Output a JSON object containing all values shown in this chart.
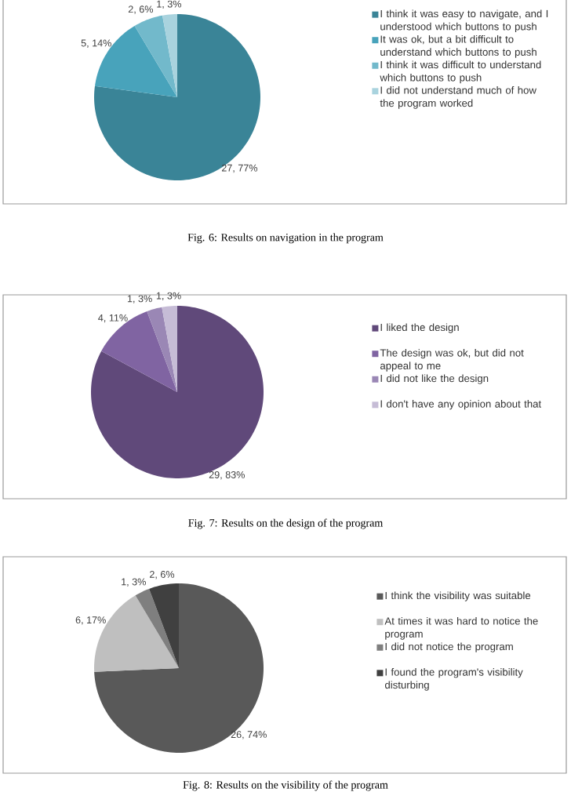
{
  "chart_data": [
    {
      "type": "pie",
      "categories": [
        "I think it was easy to navigate, and I understood which buttons to push",
        "It was ok, but a bit difficult to understand which buttons to push",
        "I think it was difficult to understand which buttons to push",
        "I did not understand much of how the program worked"
      ],
      "values": [
        27,
        5,
        2,
        1
      ],
      "colors": [
        "#3a8497",
        "#48a3bb",
        "#72b9cb",
        "#a9d3de"
      ],
      "value_labels": [
        "27, 77%",
        "5, 14%",
        "2, 6%",
        "1, 3%"
      ],
      "legend": "right",
      "annotations": [
        "Fig. 6: Results on navigation in the program"
      ]
    },
    {
      "type": "pie",
      "categories": [
        "I liked the design",
        "The design was ok, but did not appeal to me",
        "I did not like the design",
        "I don't have any opinion about that"
      ],
      "values": [
        29,
        4,
        1,
        1
      ],
      "colors": [
        "#60497a",
        "#8064a2",
        "#9a87b5",
        "#c6bcd6"
      ],
      "value_labels": [
        "29, 83%",
        "4, 11%",
        "1, 3%",
        "1, 3%"
      ],
      "legend": "right",
      "annotations": [
        "Fig. 7: Results on the design of the program"
      ]
    },
    {
      "type": "pie",
      "categories": [
        "I think the visibility was suitable",
        "At times it was hard to notice the program",
        "I did not notice the program",
        "I found the program's visibility disturbing"
      ],
      "values": [
        26,
        6,
        1,
        2
      ],
      "colors": [
        "#595959",
        "#bfbfbf",
        "#7f7f7f",
        "#404040"
      ],
      "value_labels": [
        "26, 74%",
        "6, 17%",
        "1, 3%",
        "2, 6%"
      ],
      "legend": "right",
      "annotations": [
        "Fig. 8: Results on the visibility of the program"
      ]
    }
  ]
}
